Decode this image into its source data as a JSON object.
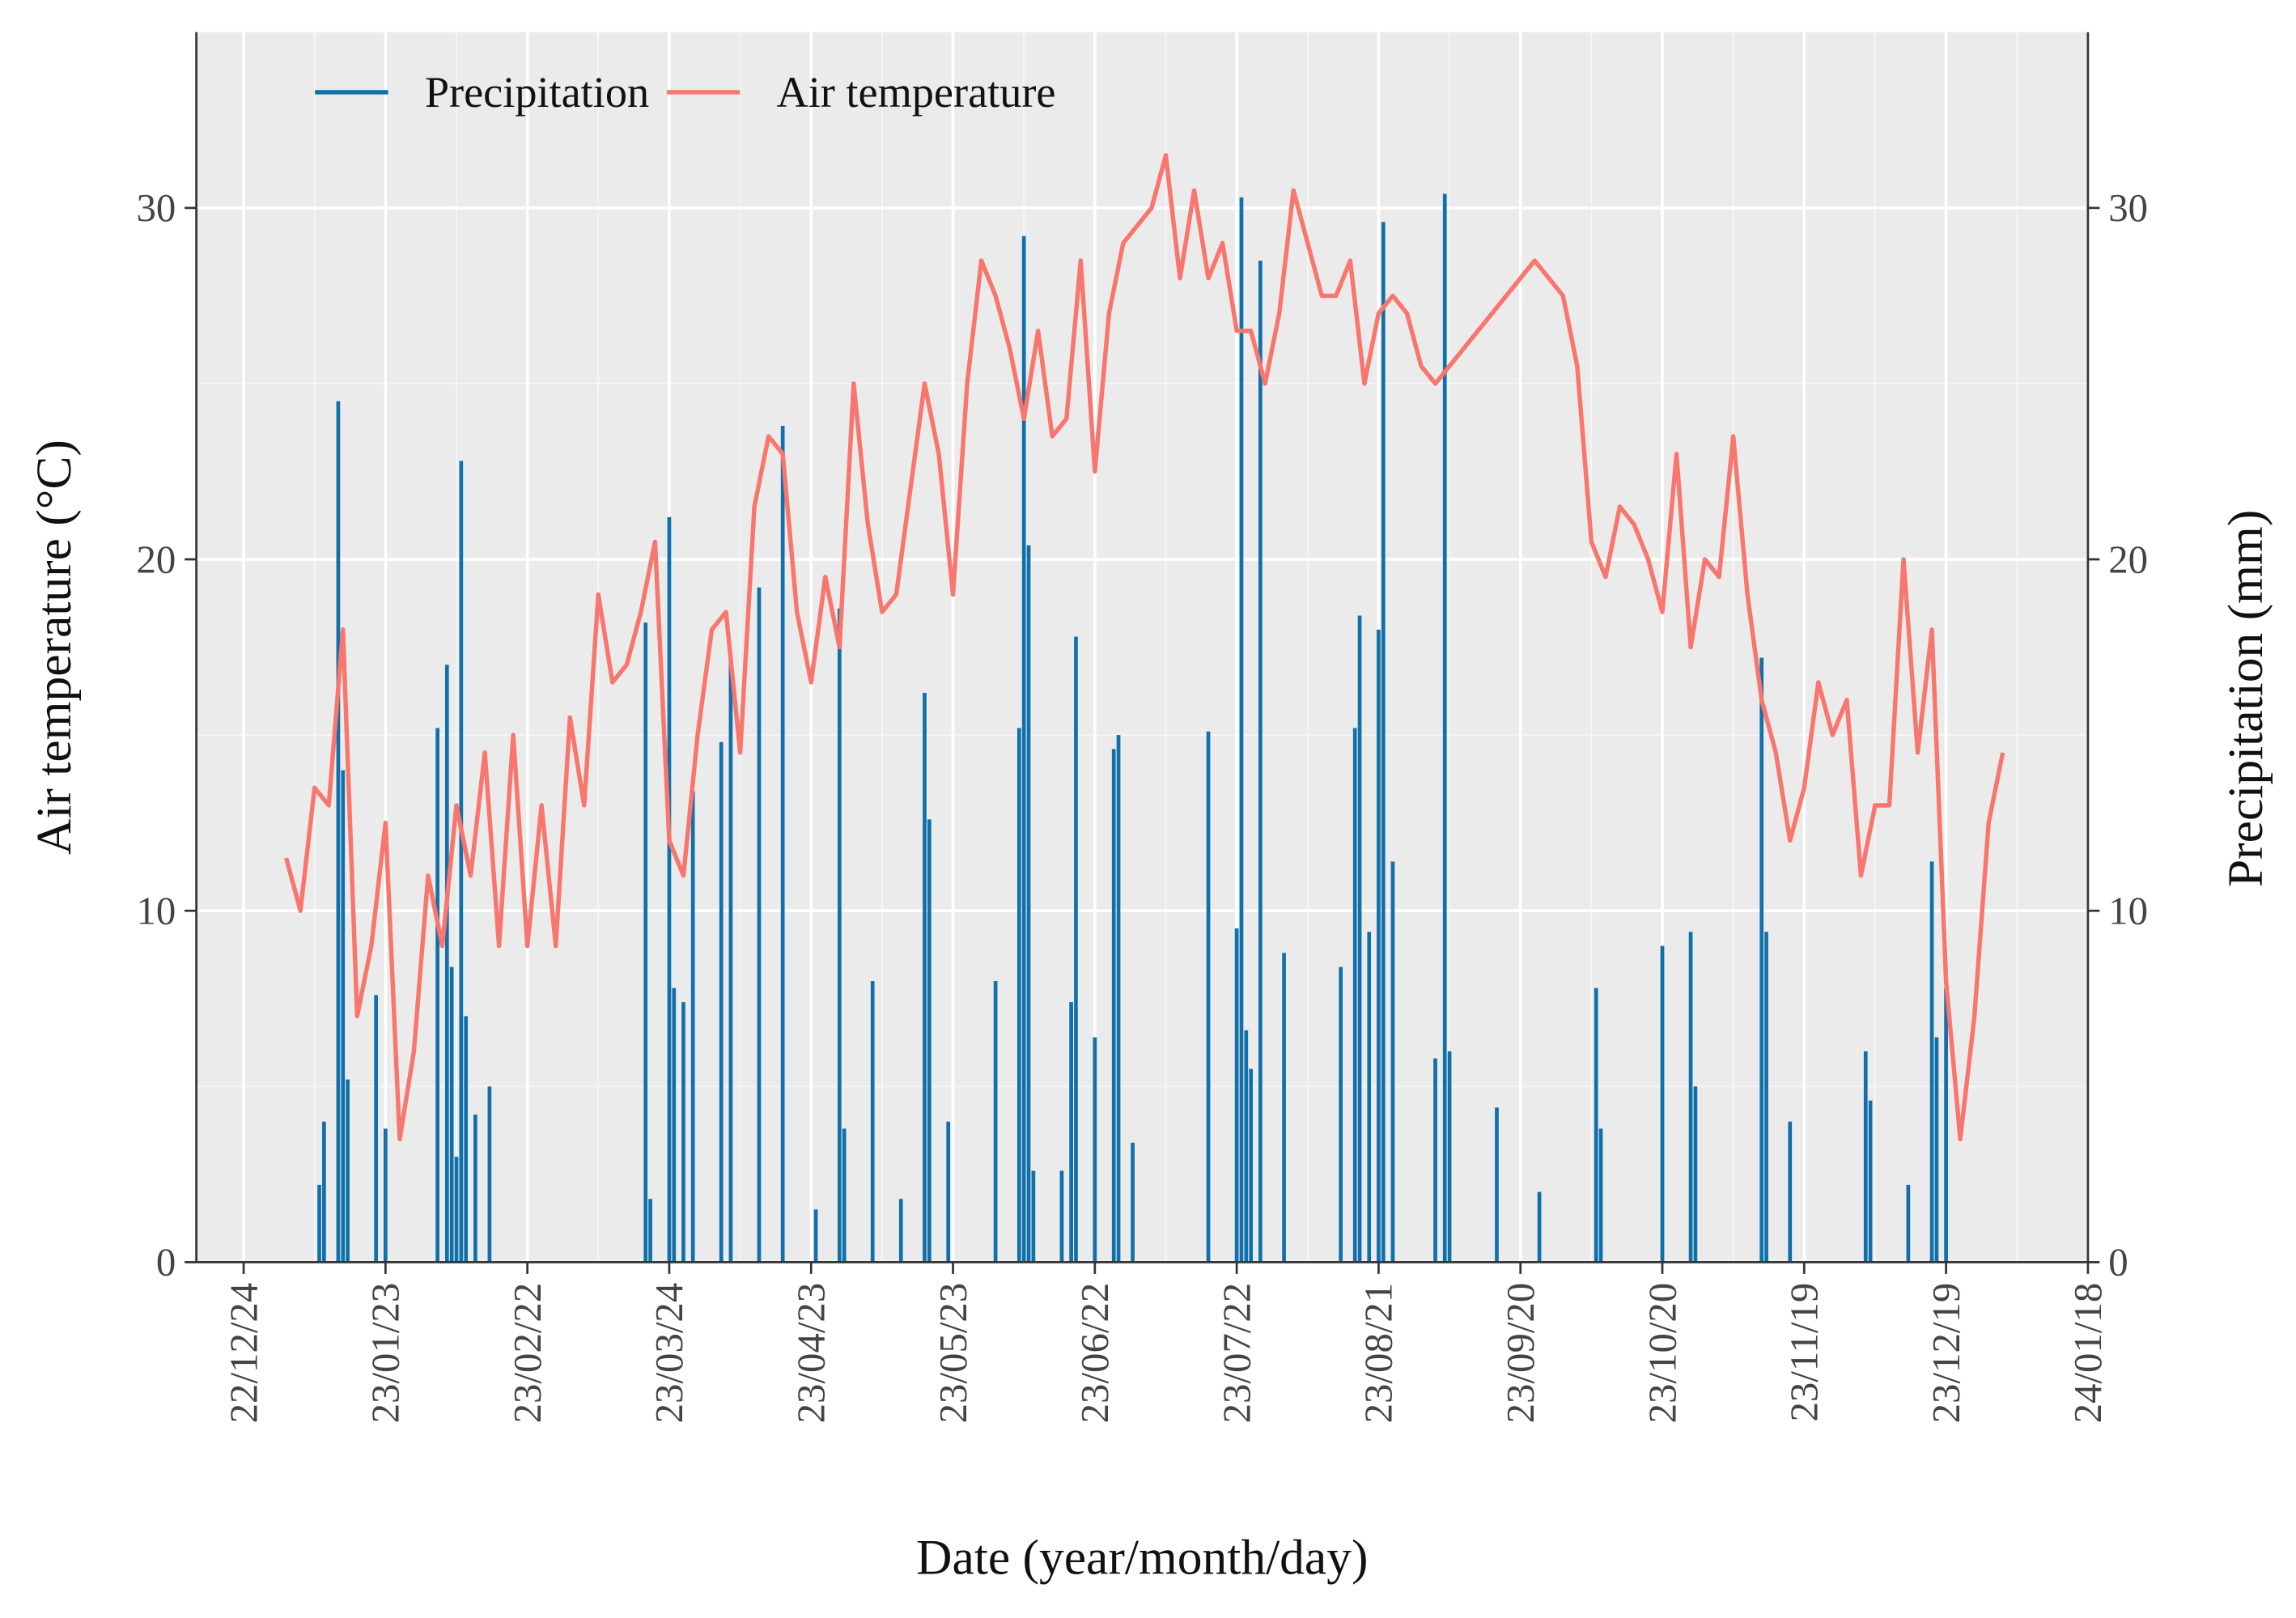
{
  "chart_data": {
    "type": "bar-line",
    "x_label": "Date (year/month/day)",
    "y_label": "Air temperature (°C)",
    "y2_label": "Precipitation (mm)",
    "xlim": [
      "22/12/14",
      "24/01/18"
    ],
    "xticks": [
      "22/12/24",
      "23/01/23",
      "23/02/22",
      "23/03/24",
      "23/04/23",
      "23/05/23",
      "23/06/22",
      "23/07/22",
      "23/08/21",
      "23/09/20",
      "23/10/20",
      "23/11/19",
      "23/12/19",
      "24/01/18"
    ],
    "ylim": [
      0,
      35
    ],
    "yticks": [
      0,
      10,
      20,
      30
    ],
    "y2lim": [
      0,
      35
    ],
    "y2ticks": [
      0,
      10,
      20,
      30
    ],
    "grid": true,
    "legend": "top-left",
    "series": [
      {
        "name": "Precipitation",
        "type": "bar",
        "axis": "y2",
        "color": "#1170aa",
        "x": [
          "23/01/09",
          "23/01/10",
          "23/01/13",
          "23/01/14",
          "23/01/15",
          "23/01/21",
          "23/01/23",
          "23/02/03",
          "23/02/05",
          "23/02/06",
          "23/02/07",
          "23/02/08",
          "23/02/09",
          "23/02/11",
          "23/02/14",
          "23/03/19",
          "23/03/20",
          "23/03/24",
          "23/03/25",
          "23/03/27",
          "23/03/29",
          "23/04/04",
          "23/04/06",
          "23/04/12",
          "23/04/17",
          "23/04/24",
          "23/04/29",
          "23/04/30",
          "23/05/06",
          "23/05/12",
          "23/05/17",
          "23/05/18",
          "23/05/22",
          "23/06/01",
          "23/06/06",
          "23/06/07",
          "23/06/08",
          "23/06/09",
          "23/06/15",
          "23/06/17",
          "23/06/18",
          "23/06/22",
          "23/06/26",
          "23/06/27",
          "23/06/30",
          "23/07/16",
          "23/07/22",
          "23/07/23",
          "23/07/24",
          "23/07/25",
          "23/07/27",
          "23/08/01",
          "23/08/13",
          "23/08/16",
          "23/08/17",
          "23/08/19",
          "23/08/21",
          "23/08/22",
          "23/08/24",
          "23/09/02",
          "23/09/04",
          "23/09/05",
          "23/09/15",
          "23/09/24",
          "23/10/06",
          "23/10/07",
          "23/10/20",
          "23/10/26",
          "23/10/27",
          "23/11/10",
          "23/11/11",
          "23/11/16",
          "23/12/02",
          "23/12/03",
          "23/12/11",
          "23/12/16",
          "23/12/17",
          "23/12/19"
        ],
        "values": [
          2.2,
          4,
          24.5,
          14,
          5.2,
          7.6,
          3.8,
          15.2,
          17,
          8.4,
          3,
          22.8,
          7,
          4.2,
          5,
          18.2,
          1.8,
          21.2,
          7.8,
          7.4,
          13.4,
          14.8,
          17.2,
          19.2,
          23.8,
          1.5,
          18.6,
          3.8,
          8,
          1.8,
          16.2,
          12.6,
          4,
          8,
          15.2,
          29.2,
          20.4,
          2.6,
          2.6,
          7.4,
          17.8,
          6.4,
          14.6,
          15,
          3.4,
          15.1,
          9.5,
          30.3,
          6.6,
          5.5,
          28.5,
          8.8,
          8.4,
          15.2,
          18.4,
          9.4,
          18,
          29.6,
          11.4,
          5.8,
          30.4,
          6,
          4.4,
          2,
          7.8,
          3.8,
          9,
          9.4,
          5,
          17.2,
          9.4,
          4,
          6,
          4.6,
          2.2,
          11.4,
          6.4,
          7.8
        ]
      },
      {
        "name": "Air temperature",
        "type": "line",
        "axis": "y",
        "color": "#f8766d",
        "x": [
          "23/01/02",
          "23/01/05",
          "23/01/08",
          "23/01/11",
          "23/01/14",
          "23/01/17",
          "23/01/20",
          "23/01/23",
          "23/01/26",
          "23/01/29",
          "23/02/01",
          "23/02/04",
          "23/02/07",
          "23/02/10",
          "23/02/13",
          "23/02/16",
          "23/02/19",
          "23/02/22",
          "23/02/25",
          "23/02/28",
          "23/03/03",
          "23/03/06",
          "23/03/09",
          "23/03/12",
          "23/03/15",
          "23/03/18",
          "23/03/21",
          "23/03/24",
          "23/03/27",
          "23/03/30",
          "23/04/02",
          "23/04/05",
          "23/04/08",
          "23/04/11",
          "23/04/14",
          "23/04/17",
          "23/04/20",
          "23/04/23",
          "23/04/26",
          "23/04/29",
          "23/05/02",
          "23/05/05",
          "23/05/08",
          "23/05/11",
          "23/05/14",
          "23/05/17",
          "23/05/20",
          "23/05/23",
          "23/05/26",
          "23/05/29",
          "23/06/01",
          "23/06/04",
          "23/06/07",
          "23/06/10",
          "23/06/13",
          "23/06/16",
          "23/06/19",
          "23/06/22",
          "23/06/25",
          "23/06/28",
          "23/07/01",
          "23/07/04",
          "23/07/07",
          "23/07/10",
          "23/07/13",
          "23/07/16",
          "23/07/19",
          "23/07/22",
          "23/07/25",
          "23/07/28",
          "23/07/31",
          "23/08/03",
          "23/08/06",
          "23/08/09",
          "23/08/12",
          "23/08/15",
          "23/08/18",
          "23/08/21",
          "23/08/24",
          "23/08/27",
          "23/08/30",
          "23/09/02",
          "23/09/05",
          "23/09/08",
          "23/09/11",
          "23/09/14",
          "23/09/17",
          "23/09/20",
          "23/09/23",
          "23/09/26",
          "23/09/29",
          "23/10/02",
          "23/10/05",
          "23/10/08",
          "23/10/11",
          "23/10/14",
          "23/10/17",
          "23/10/20",
          "23/10/23",
          "23/10/26",
          "23/10/29",
          "23/11/01",
          "23/11/04",
          "23/11/07",
          "23/11/10",
          "23/11/13",
          "23/11/16",
          "23/11/19",
          "23/11/22",
          "23/11/25",
          "23/11/28",
          "23/12/01",
          "23/12/04",
          "23/12/07",
          "23/12/10",
          "23/12/13",
          "23/12/16",
          "23/12/19",
          "23/12/22",
          "23/12/25",
          "23/12/28",
          "23/12/31"
        ],
        "values": [
          11.5,
          10,
          13.5,
          13,
          18,
          7,
          9,
          12.5,
          3.5,
          6,
          11,
          9,
          13,
          11,
          14.5,
          9,
          15,
          9,
          13,
          9,
          15.5,
          13,
          19,
          16.5,
          17,
          18.5,
          20.5,
          12,
          11,
          15,
          18,
          18.5,
          14.5,
          21.5,
          23.5,
          23,
          18.5,
          16.5,
          19.5,
          17.5,
          25,
          21,
          18.5,
          19,
          22,
          25,
          23,
          19,
          25,
          28.5,
          27.5,
          26,
          24,
          26.5,
          23.5,
          24,
          28.5,
          22.5,
          27,
          29,
          29.5,
          30,
          31.5,
          28,
          30.5,
          28,
          29,
          26.5,
          26.5,
          25,
          27,
          30.5,
          29,
          27.5,
          27.5,
          28.5,
          25,
          27,
          27.5,
          27,
          25.5,
          25,
          25.5,
          26,
          26.5,
          27,
          27.5,
          28,
          28.5,
          28,
          27.5,
          25.5,
          20.5,
          19.5,
          21.5,
          21,
          20,
          18.5,
          23,
          17.5,
          20,
          19.5,
          23.5,
          19,
          16,
          14.5,
          12,
          13.5,
          16.5,
          15,
          16,
          11,
          13,
          13,
          20,
          14.5,
          18,
          8,
          3.5,
          7,
          12.5,
          14.5
        ]
      }
    ]
  }
}
